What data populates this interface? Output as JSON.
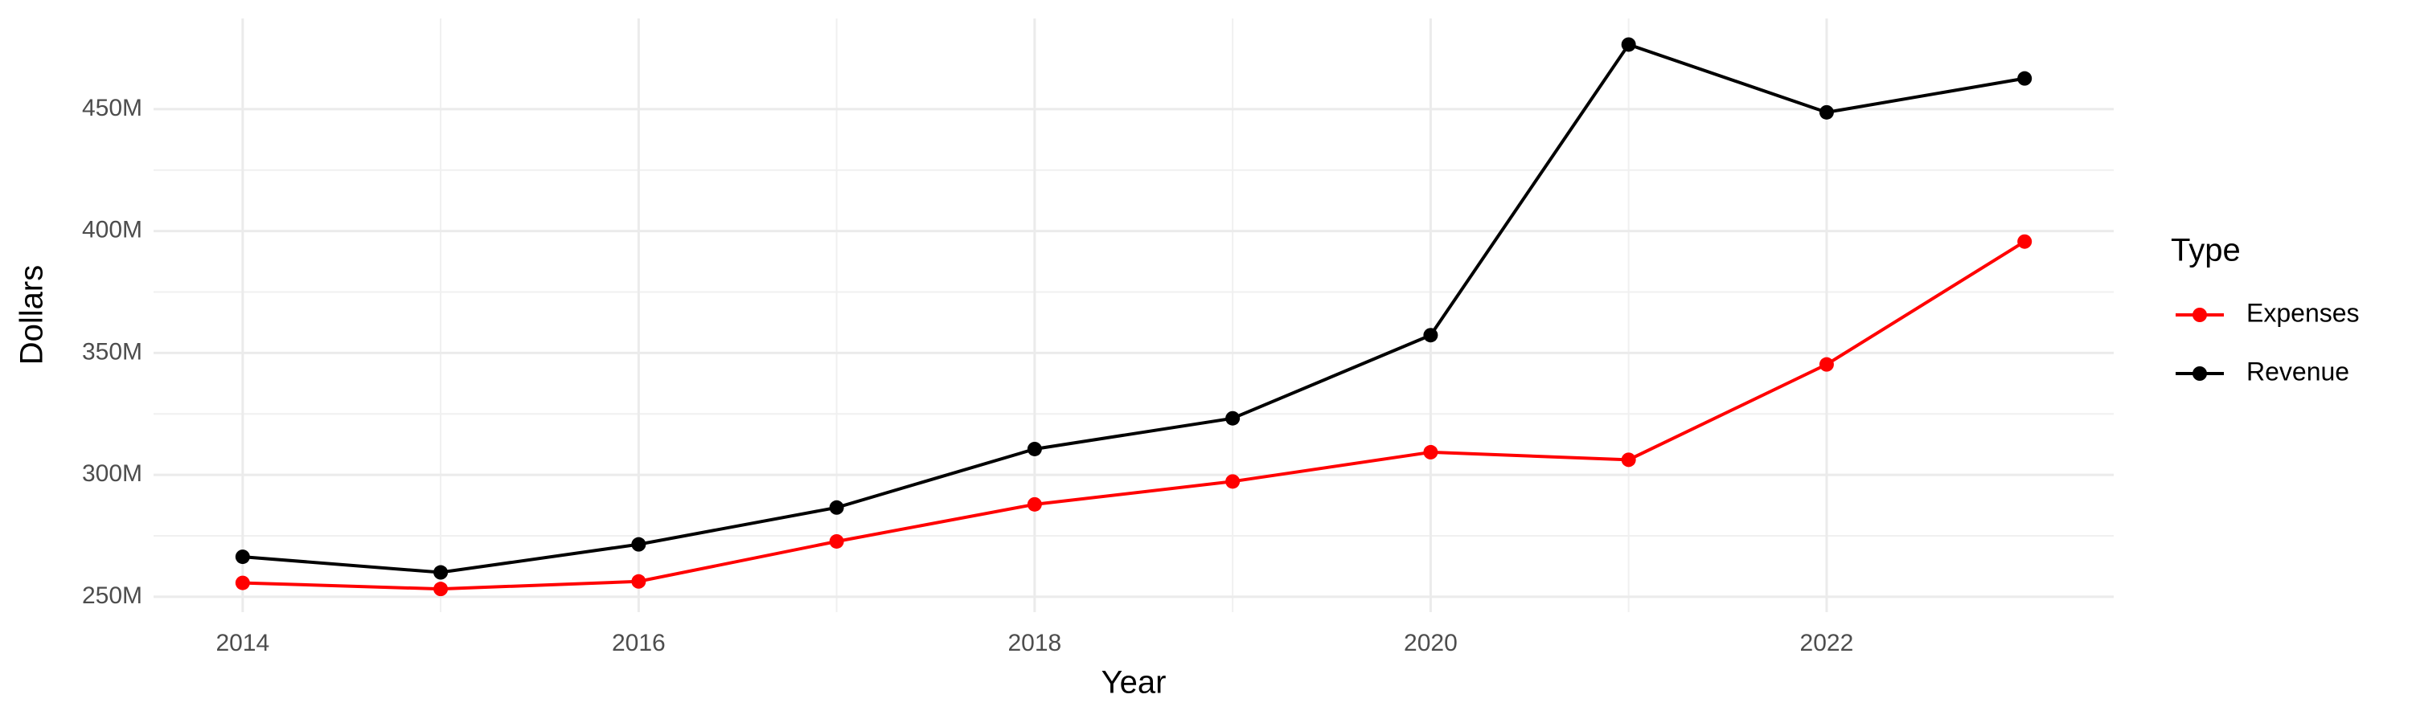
{
  "chart_data": {
    "type": "line",
    "x_label": "Year",
    "y_label": "Dollars",
    "legend_title": "Type",
    "x": [
      2014,
      2015,
      2016,
      2017,
      2018,
      2019,
      2020,
      2021,
      2022,
      2023
    ],
    "series": [
      {
        "name": "Expenses",
        "color": "#ff0000",
        "values": [
          255700000,
          253200000,
          256300000,
          272700000,
          287900000,
          297300000,
          309300000,
          306200000,
          345300000,
          395700000
        ]
      },
      {
        "name": "Revenue",
        "color": "#000000",
        "values": [
          266400000,
          260000000,
          271500000,
          286600000,
          310600000,
          323200000,
          357300000,
          476500000,
          448700000,
          462600000
        ]
      }
    ],
    "xlim": [
      2013.55,
      2023.45
    ],
    "xticks": [
      2014,
      2016,
      2018,
      2020,
      2022
    ],
    "ylim": [
      243700000,
      487200000
    ],
    "yticks": [
      {
        "value": 250000000,
        "label": "250M"
      },
      {
        "value": 300000000,
        "label": "300M"
      },
      {
        "value": 350000000,
        "label": "350M"
      },
      {
        "value": 400000000,
        "label": "400M"
      },
      {
        "value": 450000000,
        "label": "450M"
      }
    ],
    "grid": true,
    "legend": "right"
  }
}
